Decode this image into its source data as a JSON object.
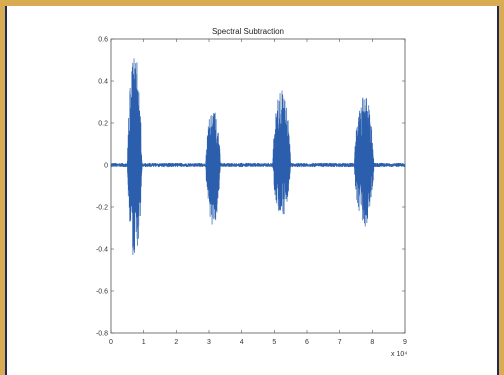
{
  "colors": {
    "background": "#d9ab52",
    "frame_border": "#1f2a56",
    "series": "#2b5fae"
  },
  "chart_data": {
    "type": "line",
    "title": "Spectral Subtraction",
    "xlabel": "",
    "ylabel": "",
    "x_exponent_label": "x 10⁴",
    "xlim": [
      0,
      9
    ],
    "ylim": [
      -0.8,
      0.6
    ],
    "x_ticks": [
      "0",
      "1",
      "2",
      "3",
      "4",
      "5",
      "6",
      "7",
      "8",
      "9"
    ],
    "y_ticks": [
      "0.6",
      "0.4",
      "0.2",
      "0",
      "-0.2",
      "-0.4",
      "-0.6",
      "-0.8"
    ],
    "grid": false,
    "legend": "none",
    "series": [
      {
        "noise_floor": 0.01,
        "bursts": [
          {
            "start": 0.5,
            "end": 0.95,
            "max": 0.53,
            "min": -0.45
          },
          {
            "start": 2.9,
            "end": 3.35,
            "max": 0.28,
            "min": -0.3
          },
          {
            "start": 4.95,
            "end": 5.5,
            "max": 0.37,
            "min": -0.25
          },
          {
            "start": 7.45,
            "end": 8.05,
            "max": 0.35,
            "min": -0.3
          }
        ]
      }
    ]
  }
}
